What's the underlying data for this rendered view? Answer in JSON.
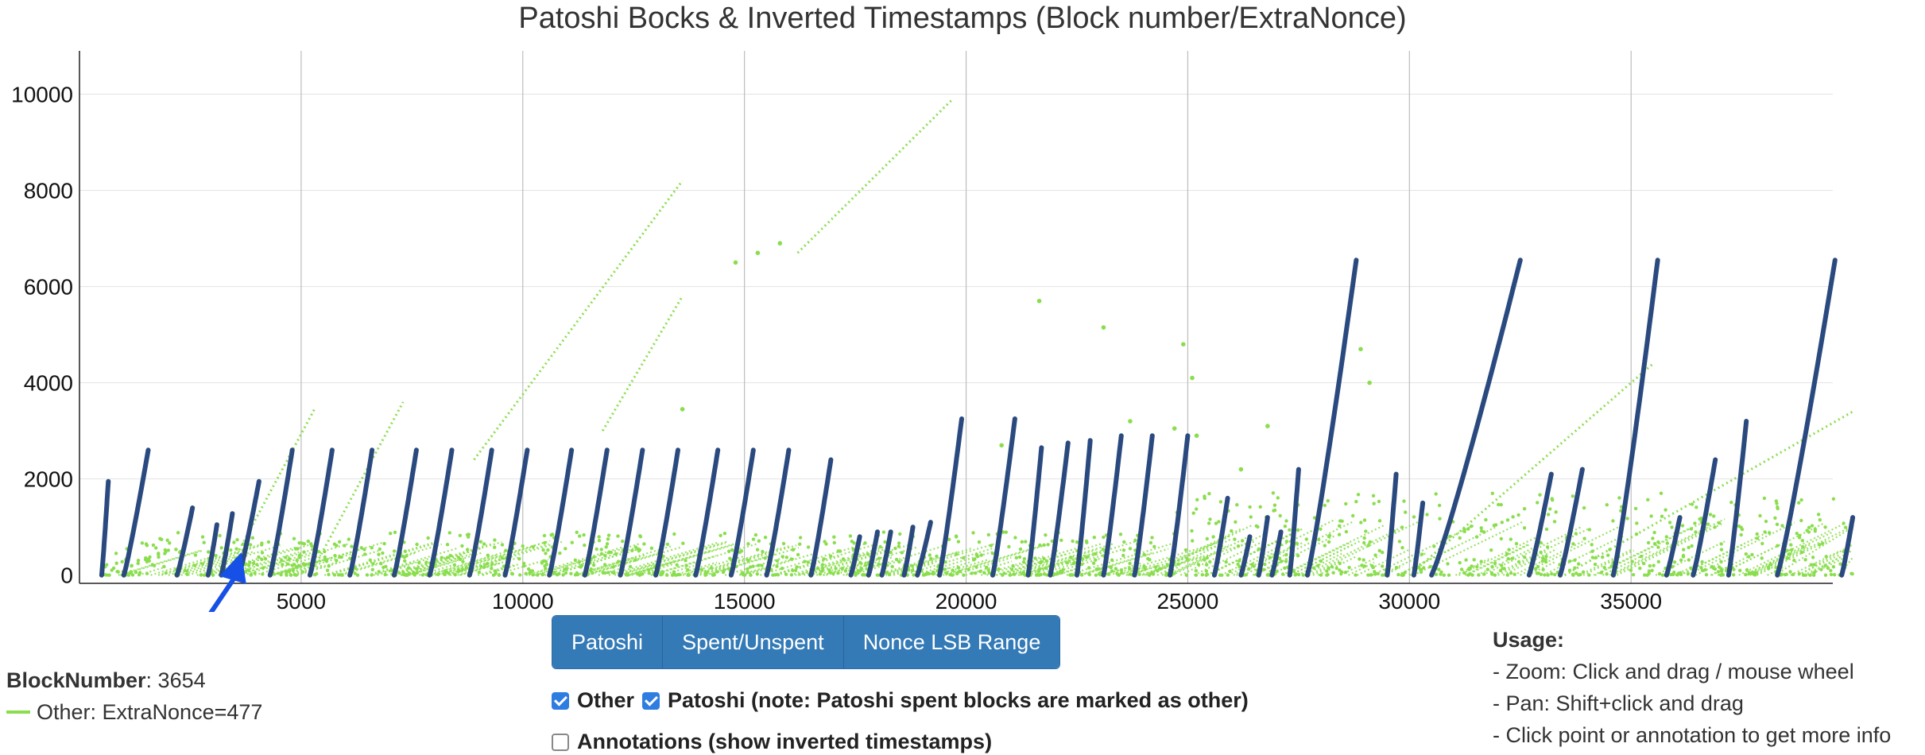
{
  "chart_data": {
    "type": "scatter",
    "title": "Patoshi Bocks & Inverted Timestamps (Block number/ExtraNonce)",
    "xlabel": "",
    "ylabel": "",
    "xlim": [
      500,
      40000
    ],
    "ylim": [
      -200,
      10900
    ],
    "x_ticks": [
      5000,
      10000,
      15000,
      20000,
      25000,
      30000,
      35000
    ],
    "y_ticks": [
      0,
      2000,
      4000,
      6000,
      8000,
      10000
    ],
    "grid": true,
    "series": [
      {
        "name": "Patoshi",
        "color": "#2a4a7f",
        "segments": [
          {
            "x0": 500,
            "x1": 650,
            "y1": 1950
          },
          {
            "x0": 1000,
            "x1": 1550,
            "y1": 2600
          },
          {
            "x0": 2200,
            "x1": 2550,
            "y1": 1400
          },
          {
            "x0": 2900,
            "x1": 3100,
            "y1": 1050
          },
          {
            "x0": 3200,
            "x1": 3450,
            "y1": 1280
          },
          {
            "x0": 3600,
            "x1": 4050,
            "y1": 1950
          },
          {
            "x0": 4300,
            "x1": 4800,
            "y1": 2600
          },
          {
            "x0": 5200,
            "x1": 5700,
            "y1": 2600
          },
          {
            "x0": 6100,
            "x1": 6600,
            "y1": 2600
          },
          {
            "x0": 7100,
            "x1": 7600,
            "y1": 2600
          },
          {
            "x0": 7900,
            "x1": 8400,
            "y1": 2600
          },
          {
            "x0": 8800,
            "x1": 9300,
            "y1": 2600
          },
          {
            "x0": 9600,
            "x1": 10100,
            "y1": 2600
          },
          {
            "x0": 10600,
            "x1": 11100,
            "y1": 2600
          },
          {
            "x0": 11400,
            "x1": 11900,
            "y1": 2600
          },
          {
            "x0": 12200,
            "x1": 12700,
            "y1": 2600
          },
          {
            "x0": 13000,
            "x1": 13500,
            "y1": 2600
          },
          {
            "x0": 13900,
            "x1": 14400,
            "y1": 2600
          },
          {
            "x0": 14700,
            "x1": 15200,
            "y1": 2600
          },
          {
            "x0": 15500,
            "x1": 16000,
            "y1": 2600
          },
          {
            "x0": 16500,
            "x1": 16950,
            "y1": 2400
          },
          {
            "x0": 17400,
            "x1": 17600,
            "y1": 800
          },
          {
            "x0": 17800,
            "x1": 18000,
            "y1": 900
          },
          {
            "x0": 18100,
            "x1": 18300,
            "y1": 900
          },
          {
            "x0": 18600,
            "x1": 18800,
            "y1": 1000
          },
          {
            "x0": 18900,
            "x1": 19200,
            "y1": 1100
          },
          {
            "x0": 19400,
            "x1": 19900,
            "y1": 3250
          },
          {
            "x0": 20600,
            "x1": 21100,
            "y1": 3250
          },
          {
            "x0": 21400,
            "x1": 21700,
            "y1": 2650
          },
          {
            "x0": 21900,
            "x1": 22300,
            "y1": 2750
          },
          {
            "x0": 22500,
            "x1": 22800,
            "y1": 2800
          },
          {
            "x0": 23100,
            "x1": 23500,
            "y1": 2900
          },
          {
            "x0": 23800,
            "x1": 24200,
            "y1": 2900
          },
          {
            "x0": 24600,
            "x1": 25000,
            "y1": 2900
          },
          {
            "x0": 25600,
            "x1": 25900,
            "y1": 1600
          },
          {
            "x0": 26200,
            "x1": 26400,
            "y1": 800
          },
          {
            "x0": 26600,
            "x1": 26800,
            "y1": 1200
          },
          {
            "x0": 26900,
            "x1": 27100,
            "y1": 900
          },
          {
            "x0": 27300,
            "x1": 27500,
            "y1": 2200
          },
          {
            "x0": 27700,
            "x1": 28800,
            "y1": 6550
          },
          {
            "x0": 29500,
            "x1": 29700,
            "y1": 2100
          },
          {
            "x0": 30100,
            "x1": 30300,
            "y1": 1500
          },
          {
            "x0": 30500,
            "x1": 32500,
            "y1": 6550
          },
          {
            "x0": 32700,
            "x1": 33200,
            "y1": 2100
          },
          {
            "x0": 33400,
            "x1": 33900,
            "y1": 2200
          },
          {
            "x0": 34600,
            "x1": 35600,
            "y1": 6550
          },
          {
            "x0": 35800,
            "x1": 36100,
            "y1": 1200
          },
          {
            "x0": 36400,
            "x1": 36900,
            "y1": 2400
          },
          {
            "x0": 37200,
            "x1": 37600,
            "y1": 3200
          },
          {
            "x0": 38300,
            "x1": 39600,
            "y1": 6550
          },
          {
            "x0": 39750,
            "x1": 40000,
            "y1": 1200
          }
        ]
      },
      {
        "name": "Other",
        "color": "#8ade4e",
        "lines": [
          {
            "x0": 3300,
            "y0": 0,
            "x1": 5300,
            "y1": 3450
          },
          {
            "x0": 5200,
            "y0": 0,
            "x1": 7300,
            "y1": 3600
          },
          {
            "x0": 8900,
            "y0": 2400,
            "x1": 13600,
            "y1": 8200
          },
          {
            "x0": 16200,
            "y0": 6700,
            "x1": 19700,
            "y1": 9900
          },
          {
            "x0": 11800,
            "y0": 3000,
            "x1": 13600,
            "y1": 5800
          },
          {
            "x0": 30000,
            "y0": 0,
            "x1": 35500,
            "y1": 4400
          },
          {
            "x0": 33500,
            "y0": 0,
            "x1": 40000,
            "y1": 3400
          }
        ]
      }
    ],
    "annotation": {
      "label": "BlockNumber",
      "x": 3654,
      "y": 477
    }
  },
  "controls": {
    "buttons": [
      "Patoshi",
      "Spent/Unspent",
      "Nonce LSB Range"
    ],
    "checkbox_other": "Other",
    "checkbox_patoshi": "Patoshi (note: Patoshi spent blocks are marked as other)",
    "checkbox_annotations": "Annotations (show inverted timestamps)"
  },
  "info": {
    "block_key": "BlockNumber",
    "block_value": ": 3654",
    "series_text": "Other: ExtraNonce=477"
  },
  "usage": {
    "heading": "Usage:",
    "lines": [
      "- Zoom: Click and drag / mouse wheel",
      "- Pan: Shift+click and drag",
      "- Click point or annotation to get more info"
    ]
  }
}
